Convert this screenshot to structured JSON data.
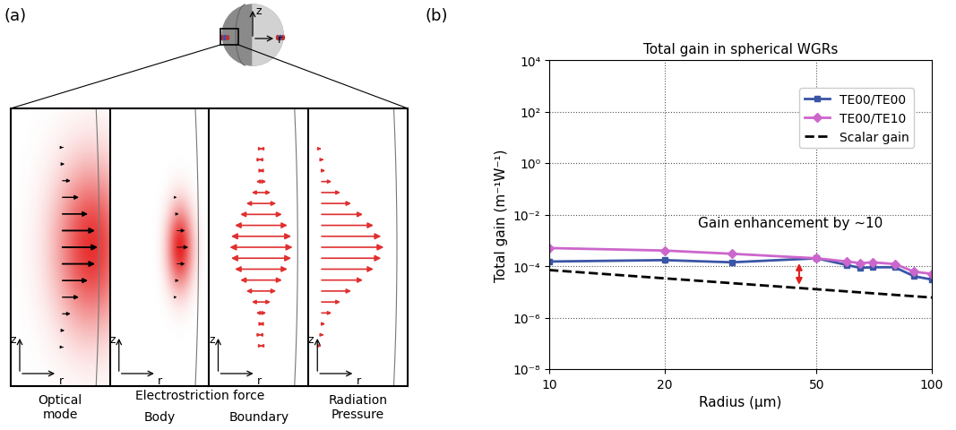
{
  "diagram": {
    "label": "(a)",
    "axis_labels": [
      "z",
      "r"
    ],
    "captions": [
      "Optical\nmode",
      "Electrostriction force",
      "Body",
      "Boundary",
      "Radiation\nPressure"
    ]
  },
  "chart_data": {
    "type": "line",
    "label": "(b)",
    "title": "Total gain in spherical WGRs",
    "x_label": "Radius (μm)",
    "y_label": "Total gain (m⁻¹W⁻¹)",
    "log": true,
    "grid": true,
    "legend": "upper right",
    "xlim": [
      10,
      100
    ],
    "xticks": [
      10,
      20,
      50,
      100
    ],
    "ylim": [
      1e-08,
      10000
    ],
    "yticks": [
      {
        "value": 1e-08,
        "label": "10⁻⁸"
      },
      {
        "value": 1e-06,
        "label": "10⁻⁶"
      },
      {
        "value": 0.0001,
        "label": "10⁻⁴"
      },
      {
        "value": 0.01,
        "label": "10⁻²"
      },
      {
        "value": 1,
        "label": "10⁰"
      },
      {
        "value": 100,
        "label": "10²"
      },
      {
        "value": 10000,
        "label": "10⁴"
      }
    ],
    "series": [
      {
        "name": "TE00/TE00",
        "color": "#3a55a6",
        "marker": "square",
        "line_style": "solid",
        "x": [
          10,
          20,
          30,
          50,
          60,
          65,
          70,
          80,
          90,
          100
        ],
        "values": [
          0.00015,
          0.00017,
          0.00014,
          0.0002,
          0.00011,
          8.5e-05,
          9e-05,
          9e-05,
          4e-05,
          3e-05
        ]
      },
      {
        "name": "TE00/TE10",
        "color": "#cc66cc",
        "marker": "diamond",
        "line_style": "solid",
        "x": [
          10,
          20,
          30,
          50,
          60,
          65,
          70,
          80,
          90,
          100
        ],
        "values": [
          0.0005,
          0.0004,
          0.0003,
          0.0002,
          0.00015,
          0.00013,
          0.00014,
          0.00012,
          6e-05,
          5e-05
        ]
      },
      {
        "name": "Scalar gain",
        "color": "#000000",
        "marker": "none",
        "line_style": "dashed",
        "x": [
          10,
          100
        ],
        "values": [
          7e-05,
          6e-06
        ]
      }
    ],
    "annotations": [
      {
        "text": "Gain enhancement by ~10",
        "arrow_x": 45,
        "arrow_y": [
          1.5e-05,
          0.00016
        ],
        "color": "#e02020"
      }
    ]
  }
}
